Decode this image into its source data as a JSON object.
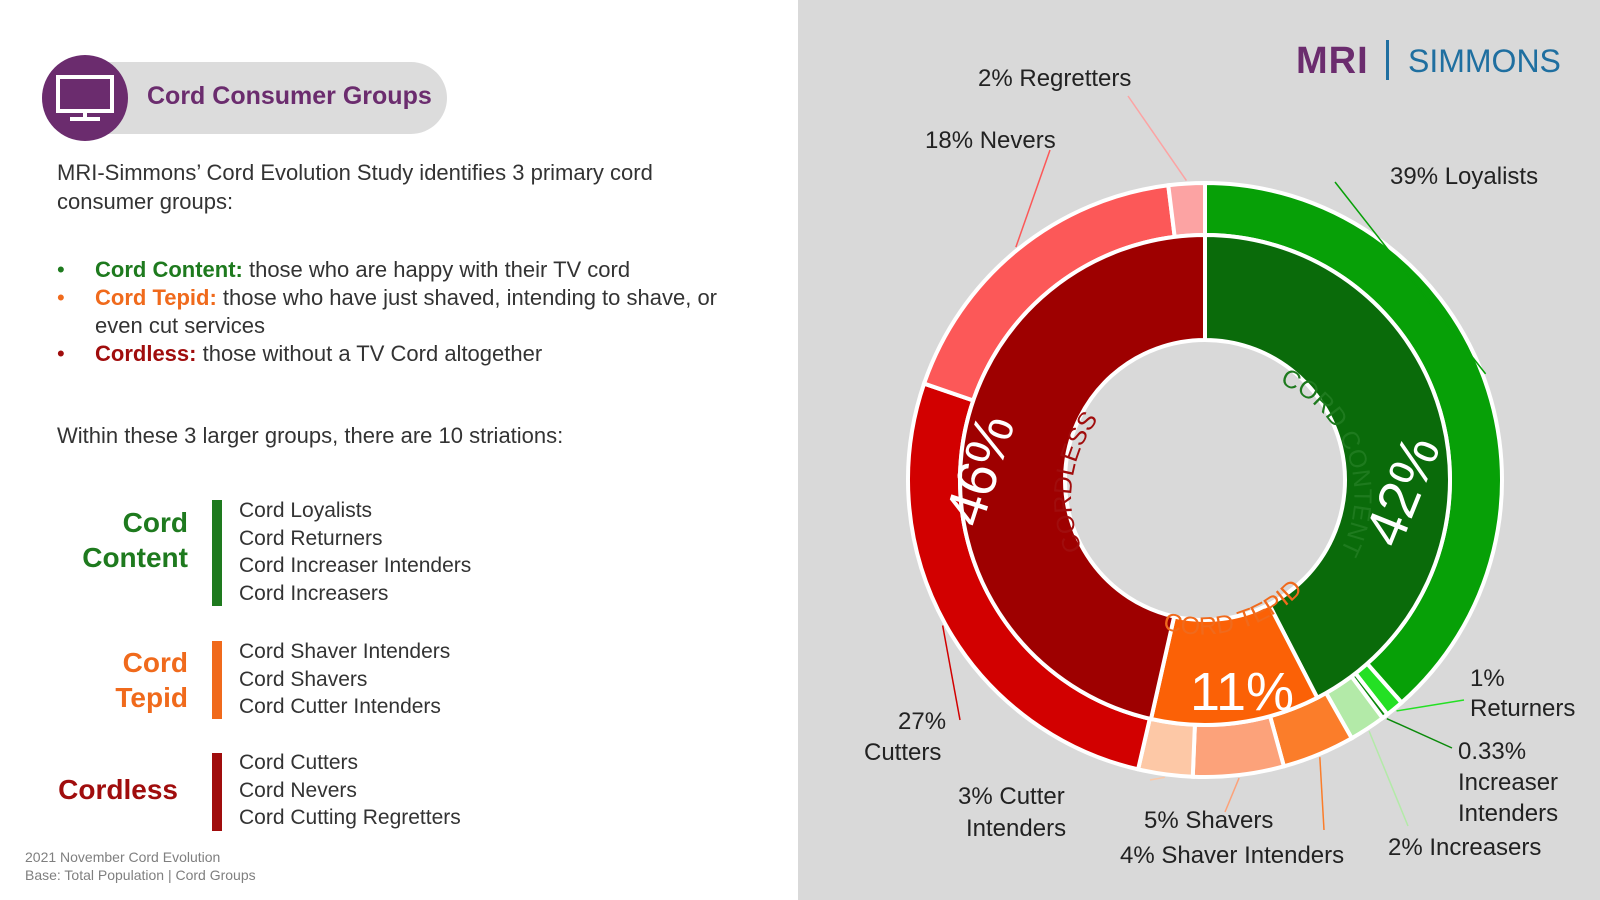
{
  "header": {
    "title": "Cord Consumer Groups"
  },
  "logo": {
    "brand_left": "MRI",
    "brand_right": "SIMMONS"
  },
  "intro": "MRI-Simmons’ Cord Evolution Study identifies 3 primary cord consumer groups:",
  "bullets": [
    {
      "term": "Cord Content:",
      "desc": " those who are happy with their TV cord",
      "color": "#1e7a1e"
    },
    {
      "term": "Cord Tepid:",
      "desc": " those who have just shaved, intending to shave, or even cut services",
      "color": "#f06a1c"
    },
    {
      "term": "Cordless:",
      "desc": " those without a TV Cord altogether",
      "color": "#a00d0d"
    }
  ],
  "within_text": "Within these 3 larger groups, there are 10 striations:",
  "groups": [
    {
      "label_line1": "Cord",
      "label_line2": "Content",
      "color": "#1e7a1e",
      "items": [
        "Cord Loyalists",
        "Cord Returners",
        "Cord Increaser Intenders",
        "Cord Increasers"
      ]
    },
    {
      "label_line1": "Cord",
      "label_line2": "Tepid",
      "color": "#f06a1c",
      "items": [
        "Cord Shaver Intenders",
        "Cord Shavers",
        "Cord Cutter Intenders"
      ]
    },
    {
      "label_line1": "Cordless",
      "label_line2": "",
      "color": "#a00d0d",
      "items": [
        "Cord Cutters",
        "Cord Nevers",
        "Cord Cutting Regretters"
      ]
    }
  ],
  "footer": {
    "line1": "2021 November Cord Evolution",
    "line2": "Base: Total Population  |  Cord Groups"
  },
  "chart_data": {
    "type": "pie",
    "title": "",
    "inner_ring": [
      {
        "name": "CORD CONTENT",
        "value": 42,
        "label": "42%",
        "color": "#0a6b0a",
        "text_color": "#1e7a1e"
      },
      {
        "name": "CORD TEPID",
        "value": 11,
        "label": "11%",
        "color": "#fb6106",
        "text_color": "#f06a1c"
      },
      {
        "name": "CORDLESS",
        "value": 46,
        "label": "46%",
        "color": "#9e0000",
        "text_color": "#a00d0d"
      }
    ],
    "outer_ring": [
      {
        "name": "Loyalists",
        "value": 39,
        "label_l1": "39% Loyalists",
        "label_l2": "",
        "color": "#07a007"
      },
      {
        "name": "Returners",
        "value": 1,
        "label_l1": "1%",
        "label_l2": "Returners",
        "color": "#24e024"
      },
      {
        "name": "Increaser Intenders",
        "value": 0.33,
        "label_l1": "0.33%",
        "label_l2": "Increaser",
        "label_l3": "Intenders",
        "color": "#0a8a0a"
      },
      {
        "name": "Increasers",
        "value": 2,
        "label_l1": "2% Increasers",
        "label_l2": "",
        "color": "#b3eaa8"
      },
      {
        "name": "Shaver Intenders",
        "value": 4,
        "label_l1": "4% Shaver Intenders",
        "label_l2": "",
        "color": "#fb7d2a"
      },
      {
        "name": "Shavers",
        "value": 5,
        "label_l1": "5% Shavers",
        "label_l2": "",
        "color": "#fca27a"
      },
      {
        "name": "Cutter Intenders",
        "value": 3,
        "label_l1": "3% Cutter",
        "label_l2": "Intenders",
        "color": "#fdc8a6"
      },
      {
        "name": "Cutters",
        "value": 27,
        "label_l1": "27%",
        "label_l2": "Cutters",
        "color": "#d20000"
      },
      {
        "name": "Nevers",
        "value": 18,
        "label_l1": "18% Nevers",
        "label_l2": "",
        "color": "#fc5858"
      },
      {
        "name": "Regretters",
        "value": 2,
        "label_l1": "2% Regretters",
        "label_l2": "",
        "color": "#fca3a3"
      }
    ]
  }
}
